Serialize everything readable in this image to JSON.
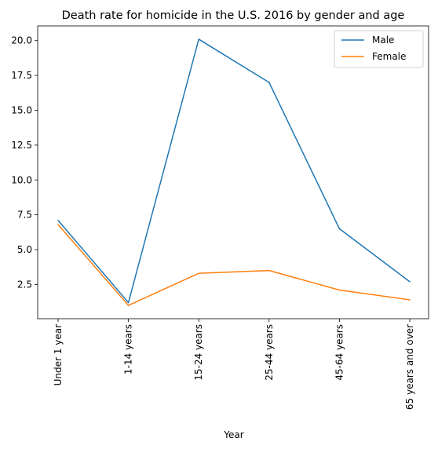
{
  "chart_data": {
    "type": "line",
    "title": "Death rate for homicide in the U.S. 2016 by gender and age",
    "xlabel": "Year",
    "ylabel": "",
    "categories": [
      "Under 1 year",
      "1-14 years",
      "15-24 years",
      "25-44 years",
      "45-64 years",
      "65 years and over"
    ],
    "series": [
      {
        "name": "Male",
        "color": "#1f77b4",
        "values": [
          7.1,
          1.2,
          20.1,
          17.0,
          6.5,
          2.7
        ]
      },
      {
        "name": "Female",
        "color": "#ff7f0e",
        "values": [
          6.8,
          1.0,
          3.3,
          3.5,
          2.1,
          1.4
        ]
      }
    ],
    "yticks": [
      "2.5",
      "5.0",
      "7.5",
      "10.0",
      "12.5",
      "15.0",
      "17.5",
      "20.0"
    ],
    "ylim": [
      0.045,
      21.055
    ],
    "grid": false,
    "legend_position": "top-right"
  }
}
